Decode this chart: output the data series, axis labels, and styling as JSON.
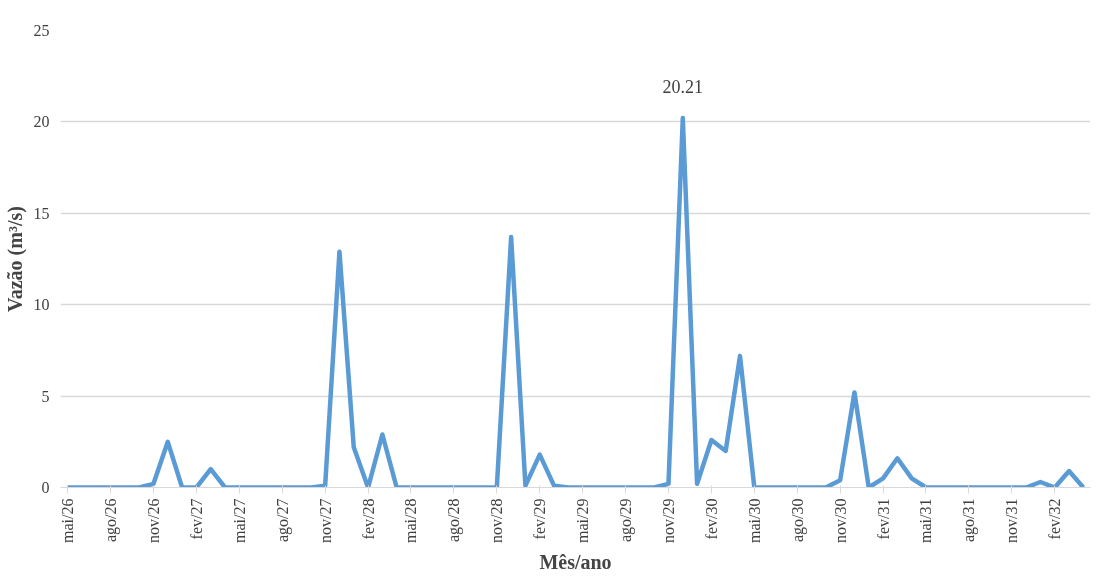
{
  "chart_data": {
    "type": "line",
    "xlabel": "Mês/ano",
    "ylabel": "Vazão (m³/s)",
    "categories": [
      "mai/26",
      null,
      null,
      "ago/26",
      null,
      null,
      "nov/26",
      null,
      null,
      "fev/27",
      null,
      null,
      "mai/27",
      null,
      null,
      "ago/27",
      null,
      null,
      "nov/27",
      null,
      null,
      "fev/28",
      null,
      null,
      "mai/28",
      null,
      null,
      "ago/28",
      null,
      null,
      "nov/28",
      null,
      null,
      "fev/29",
      null,
      null,
      "mai/29",
      null,
      null,
      "ago/29",
      null,
      null,
      "nov/29",
      null,
      null,
      "fev/30",
      null,
      null,
      "mai/30",
      null,
      null,
      "ago/30",
      null,
      null,
      "nov/30",
      null,
      null,
      "fev/31",
      null,
      null,
      "mai/31",
      null,
      null,
      "ago/31",
      null,
      null,
      "nov/31",
      null,
      null,
      "fev/32",
      null,
      null
    ],
    "series": [
      {
        "color": "#5b9bd5",
        "values": [
          0,
          0,
          0,
          0,
          0,
          0,
          0.2,
          2.5,
          0,
          0,
          1.0,
          0,
          0,
          0,
          0,
          0,
          0,
          0,
          0.1,
          12.9,
          2.2,
          0,
          2.9,
          0,
          0,
          0,
          0,
          0,
          0,
          0,
          0,
          13.7,
          0.1,
          1.8,
          0.1,
          0,
          0,
          0,
          0,
          0,
          0,
          0,
          0.2,
          20.21,
          0.2,
          2.6,
          2.0,
          7.2,
          0,
          0,
          0,
          0,
          0,
          0,
          0.4,
          5.2,
          0,
          0.5,
          1.6,
          0.5,
          0,
          0,
          0,
          0,
          0,
          0,
          0,
          0,
          0.3,
          0,
          0.9,
          0
        ]
      }
    ],
    "value_labels": [
      null,
      null,
      null,
      null,
      null,
      null,
      null,
      null,
      null,
      null,
      null,
      null,
      null,
      null,
      null,
      null,
      null,
      null,
      null,
      null,
      null,
      null,
      null,
      null,
      null,
      null,
      null,
      null,
      null,
      null,
      null,
      null,
      null,
      null,
      null,
      null,
      null,
      null,
      null,
      null,
      null,
      null,
      null,
      "20.21",
      null,
      null,
      null,
      null,
      null,
      null,
      null,
      null,
      null,
      null,
      null,
      null,
      null,
      null,
      null,
      null,
      null,
      null,
      null,
      null,
      null,
      null,
      null,
      null,
      null,
      null,
      null,
      null
    ],
    "ylim": [
      0,
      25
    ],
    "yticks": [
      0,
      5,
      10,
      15,
      20,
      25
    ],
    "grid": "y",
    "line_style": "solid",
    "marker": "none"
  }
}
